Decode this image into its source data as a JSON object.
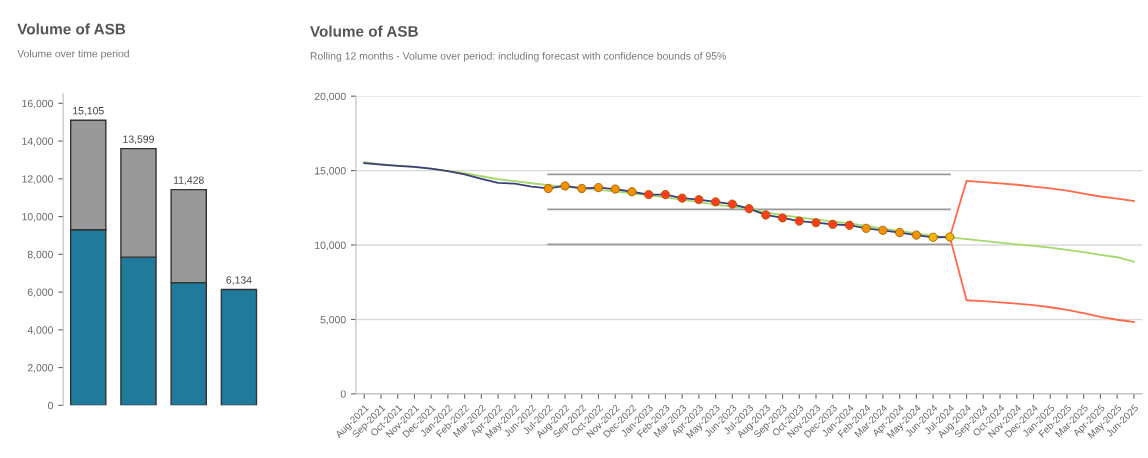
{
  "chart_data": [
    {
      "type": "bar",
      "title": "Volume of ASB",
      "subtitle": "Volume over time period",
      "stacked": true,
      "categories": [
        null,
        null,
        null,
        null
      ],
      "series": [
        {
          "color": "#1f7a9c",
          "values": [
            9300,
            7850,
            6500,
            6134
          ]
        },
        {
          "color": "#999999",
          "values": [
            5805,
            5749,
            4928,
            null
          ]
        }
      ],
      "totals": [
        "15,105",
        "13,599",
        "11,428",
        "6,134"
      ],
      "ylim": [
        0,
        16500
      ],
      "yticks": [
        {
          "value": 0,
          "label": "0"
        },
        {
          "value": 2000,
          "label": "2,000"
        },
        {
          "value": 4000,
          "label": "4,000"
        },
        {
          "value": 6000,
          "label": "6,000"
        },
        {
          "value": 8000,
          "label": "8,000"
        },
        {
          "value": 10000,
          "label": "10,000"
        },
        {
          "value": 12000,
          "label": "12,000"
        },
        {
          "value": 14000,
          "label": "14,000"
        },
        {
          "value": 16000,
          "label": "16,000"
        }
      ],
      "grid": false,
      "tick_labels": "y"
    },
    {
      "type": "line",
      "title": "Volume of ASB",
      "subtitle": "Rolling 12 months - Volume over period: including forecast with confidence bounds of 95%",
      "categories": [
        "Aug-2021",
        "Sep-2021",
        "Oct-2021",
        "Nov-2021",
        "Dec-2021",
        "Jan-2022",
        "Feb-2022",
        "Mar-2022",
        "Apr-2022",
        "May-2022",
        "Jun-2022",
        "Jul-2022",
        "Aug-2022",
        "Sep-2022",
        "Oct-2022",
        "Nov-2022",
        "Dec-2022",
        "Jan-2023",
        "Feb-2023",
        "Mar-2023",
        "Apr-2023",
        "May-2023",
        "Jun-2023",
        "Jul-2023",
        "Aug-2023",
        "Sep-2023",
        "Oct-2023",
        "Nov-2023",
        "Dec-2023",
        "Jan-2024",
        "Feb-2024",
        "Mar-2024",
        "Apr-2024",
        "May-2024",
        "Jun-2024",
        "Jul-2024",
        "Aug-2024",
        "Sep-2024",
        "Oct-2024",
        "Nov-2024",
        "Dec-2024",
        "Jan-2025",
        "Feb-2025",
        "Mar-2025",
        "Apr-2025",
        "May-2025",
        "Jun-2025"
      ],
      "series": [
        {
          "color": "#999999",
          "values": [
            null,
            null,
            null,
            null,
            null,
            null,
            null,
            null,
            null,
            null,
            null,
            14750,
            14750,
            14750,
            14750,
            14750,
            14750,
            14750,
            14750,
            14750,
            14750,
            14750,
            14750,
            14750,
            14750,
            14750,
            14750,
            14750,
            14750,
            14750,
            14750,
            14750,
            14750,
            14750,
            14750,
            14750,
            null,
            null,
            null,
            null,
            null,
            null,
            null,
            null,
            null,
            null,
            null
          ]
        },
        {
          "color": "#999999",
          "values": [
            null,
            null,
            null,
            null,
            null,
            null,
            null,
            null,
            null,
            null,
            null,
            12400,
            12400,
            12400,
            12400,
            12400,
            12400,
            12400,
            12400,
            12400,
            12400,
            12400,
            12400,
            12400,
            12400,
            12400,
            12400,
            12400,
            12400,
            12400,
            12400,
            12400,
            12400,
            12400,
            12400,
            12400,
            null,
            null,
            null,
            null,
            null,
            null,
            null,
            null,
            null,
            null,
            null
          ]
        },
        {
          "color": "#999999",
          "values": [
            null,
            null,
            null,
            null,
            null,
            null,
            null,
            null,
            null,
            null,
            null,
            10050,
            10050,
            10050,
            10050,
            10050,
            10050,
            10050,
            10050,
            10050,
            10050,
            10050,
            10050,
            10050,
            10050,
            10050,
            10050,
            10050,
            10050,
            10050,
            10050,
            10050,
            10050,
            10050,
            10050,
            10050,
            null,
            null,
            null,
            null,
            null,
            null,
            null,
            null,
            null,
            null,
            null
          ]
        },
        {
          "color": "#ff6a4d",
          "values": [
            null,
            null,
            null,
            null,
            null,
            null,
            null,
            null,
            null,
            null,
            null,
            null,
            null,
            null,
            null,
            null,
            null,
            null,
            null,
            null,
            null,
            null,
            null,
            null,
            null,
            null,
            null,
            null,
            null,
            null,
            null,
            null,
            null,
            null,
            null,
            10540,
            14310,
            14230,
            14140,
            14050,
            13930,
            13800,
            13650,
            13450,
            13260,
            13120,
            12960
          ]
        },
        {
          "color": "#ff6a4d",
          "values": [
            null,
            null,
            null,
            null,
            null,
            null,
            null,
            null,
            null,
            null,
            null,
            null,
            null,
            null,
            null,
            null,
            null,
            null,
            null,
            null,
            null,
            null,
            null,
            null,
            null,
            null,
            null,
            null,
            null,
            null,
            null,
            null,
            null,
            null,
            null,
            10540,
            6290,
            6230,
            6150,
            6060,
            5960,
            5820,
            5650,
            5420,
            5170,
            4980,
            4830
          ]
        },
        {
          "color": "#a6d86e",
          "values": [
            15560,
            15430,
            15330,
            15250,
            15120,
            14980,
            14830,
            14620,
            14420,
            14290,
            14150,
            14030,
            13920,
            13800,
            13700,
            13600,
            13480,
            13330,
            13200,
            13050,
            12880,
            12720,
            12580,
            12450,
            12200,
            12000,
            11850,
            11700,
            11580,
            11450,
            11280,
            11100,
            10950,
            10780,
            10620,
            10520,
            10400,
            10280,
            10160,
            10040,
            9940,
            9820,
            9680,
            9520,
            9340,
            9180,
            8880
          ]
        },
        {
          "color": "#3d3f7a",
          "marker": "circle",
          "values": [
            15500,
            15400,
            15320,
            15250,
            15130,
            14960,
            14740,
            14440,
            14180,
            14120,
            13930,
            13800,
            13970,
            13800,
            13860,
            13760,
            13580,
            13390,
            13390,
            13150,
            13050,
            12900,
            12750,
            12440,
            12020,
            11820,
            11610,
            11500,
            11390,
            11330,
            11120,
            10990,
            10840,
            10670,
            10520,
            10540,
            null,
            null,
            null,
            null,
            null,
            null,
            null,
            null,
            null,
            null,
            null
          ],
          "colors": [
            null,
            null,
            null,
            null,
            null,
            null,
            null,
            null,
            null,
            null,
            null,
            "#f39200",
            "#f39200",
            "#f39200",
            "#f39200",
            "#f39200",
            "#f39200",
            "#ff3d1a",
            "#ff3d1a",
            "#ff3d1a",
            "#ff3d1a",
            "#ff3d1a",
            "#ff3d1a",
            "#ff3d1a",
            "#ff3d1a",
            "#ff3d1a",
            "#ff3d1a",
            "#ff3d1a",
            "#ff3d1a",
            "#ff3d1a",
            "#f39200",
            "#f39200",
            "#f39200",
            "#f39200",
            "#f5b800",
            "#f5b800",
            null,
            null,
            null,
            null,
            null,
            null,
            null,
            null,
            null,
            null,
            null
          ]
        }
      ],
      "ylim": [
        0,
        20000
      ],
      "yticks": [
        {
          "value": 0,
          "label": "0"
        },
        {
          "value": 5000,
          "label": "5,000"
        },
        {
          "value": 10000,
          "label": "10,000"
        },
        {
          "value": 15000,
          "label": "15,000"
        },
        {
          "value": 20000,
          "label": "20,000"
        }
      ],
      "grid": "y"
    }
  ]
}
